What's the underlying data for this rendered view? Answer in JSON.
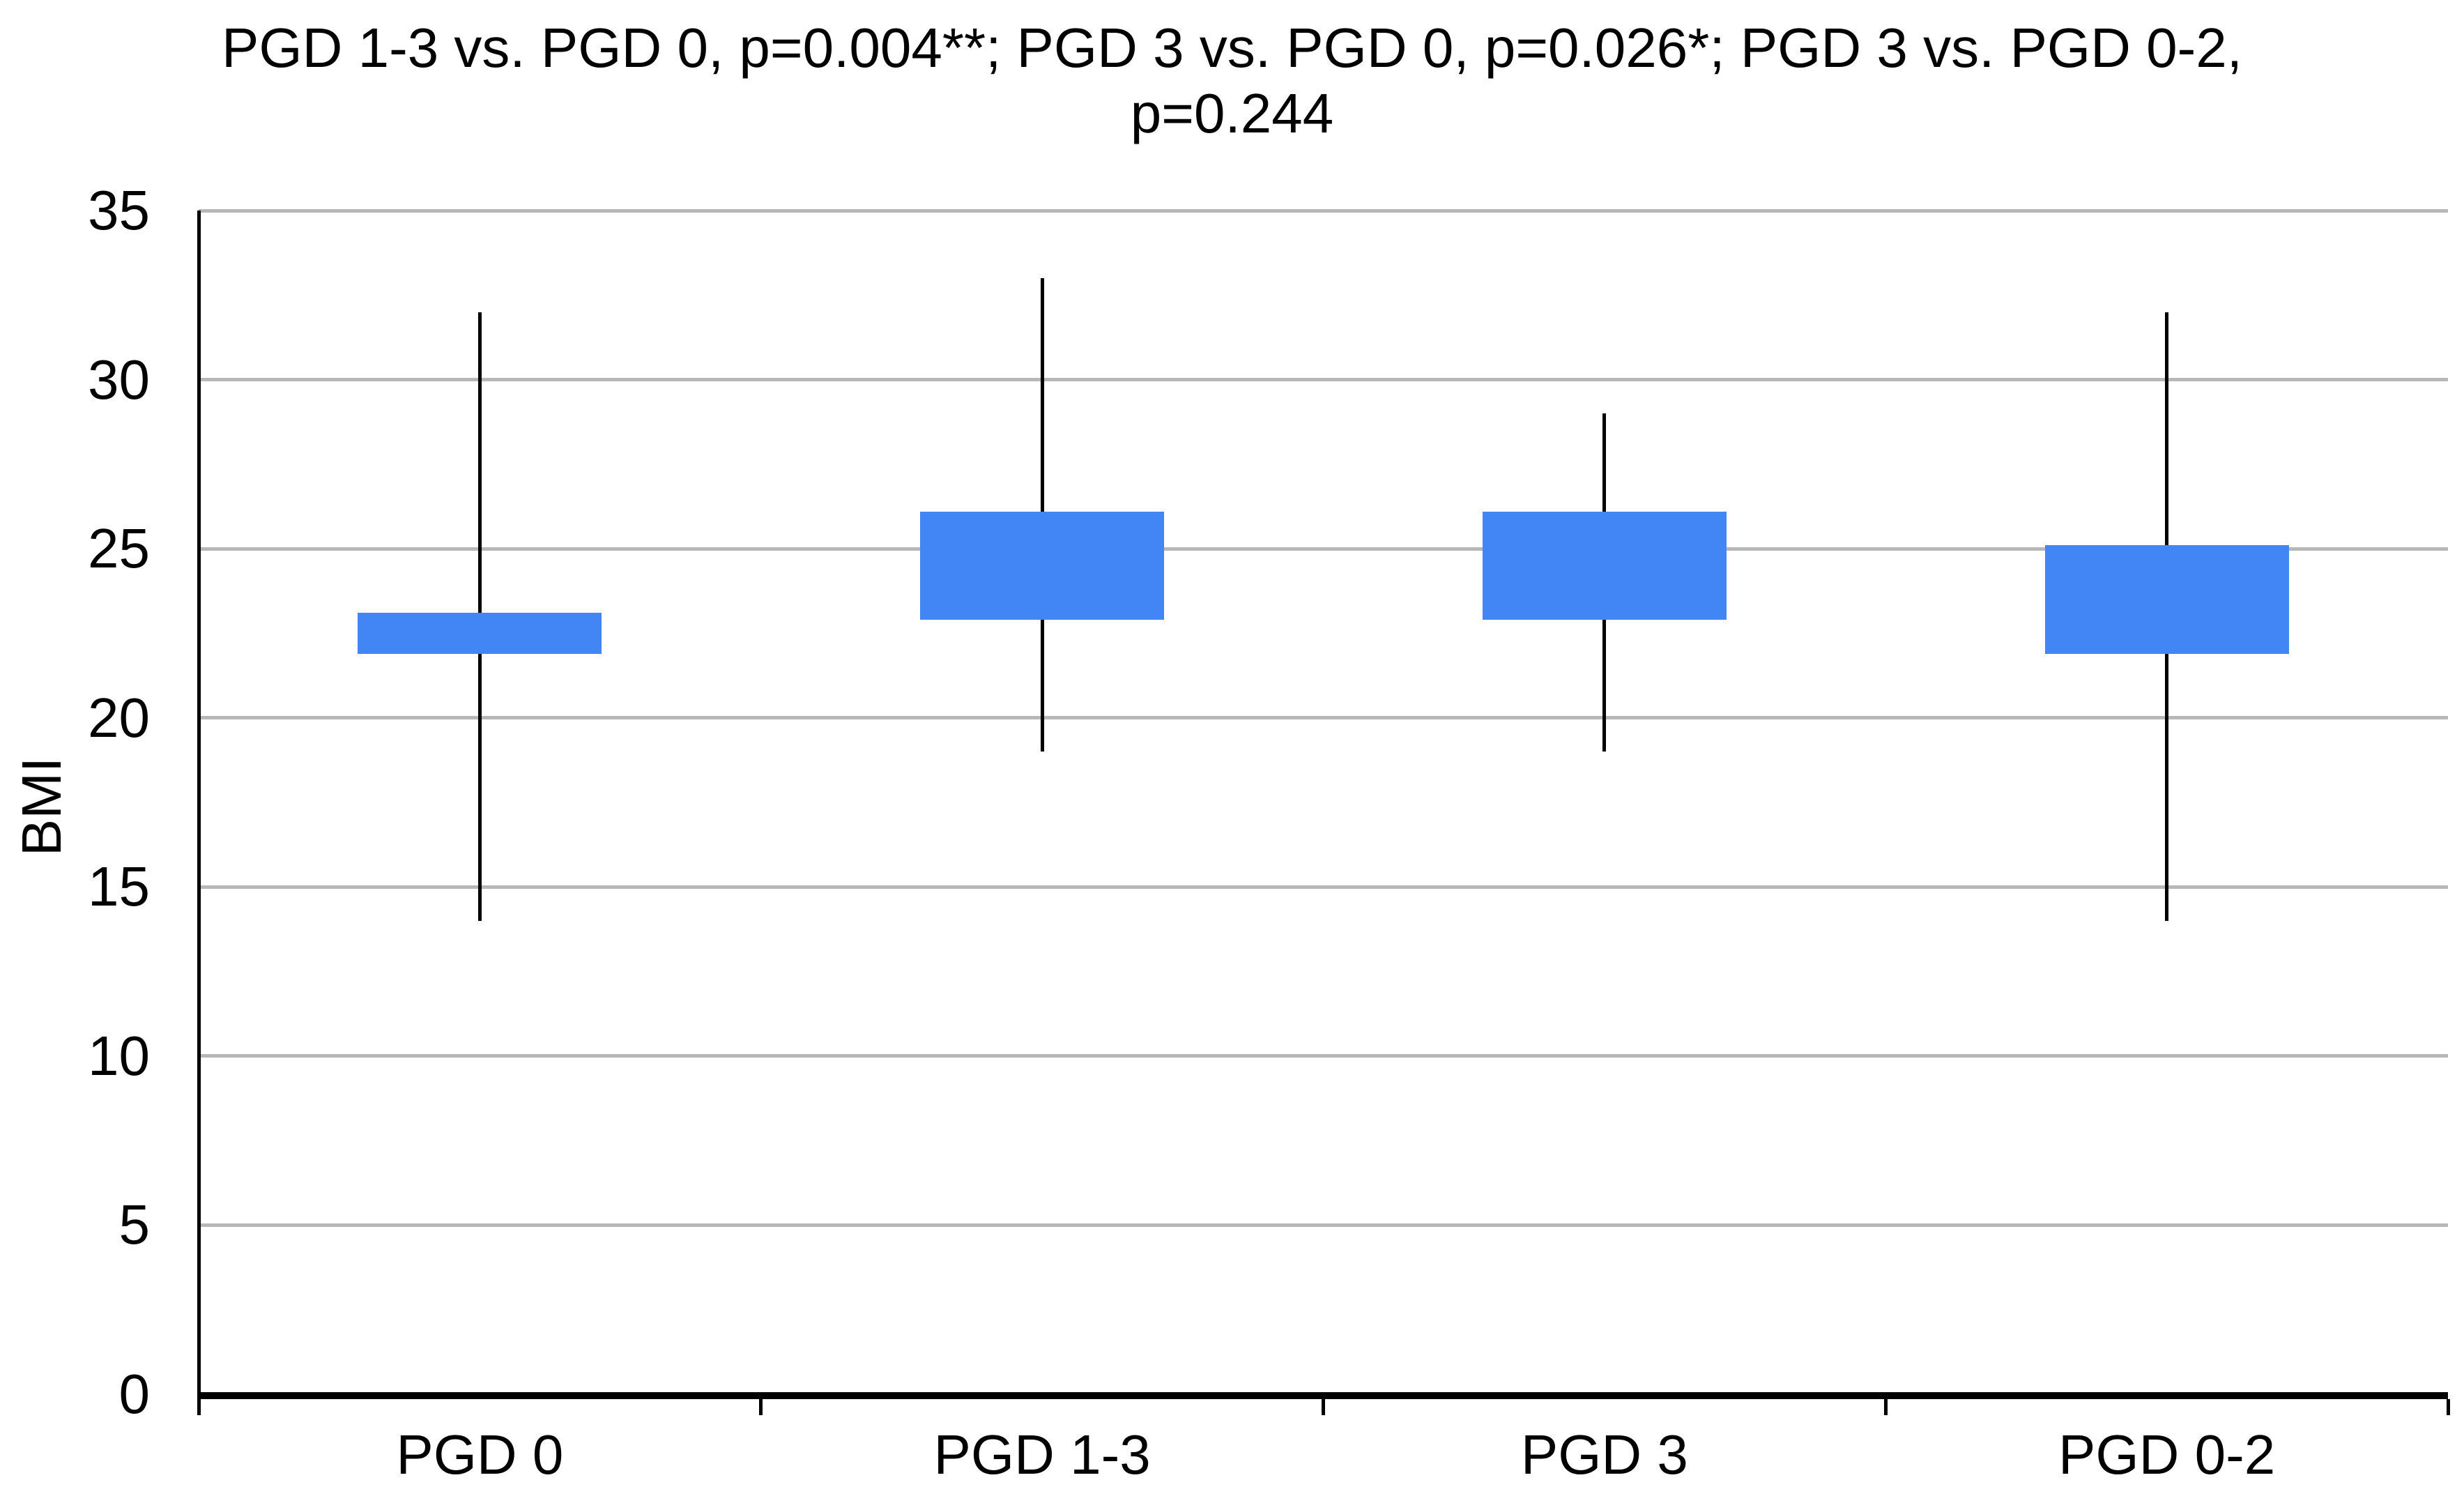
{
  "chart_data": {
    "type": "boxplot",
    "title": "PGD 1-3 vs. PGD 0, p=0.004**; PGD 3 vs. PGD 0, p=0.026*; PGD 3 vs. PGD 0-2, p=0.244",
    "title_lines": [
      "PGD 1-3 vs. PGD 0, p=0.004**; PGD 3 vs. PGD 0, p=0.026*; PGD 3 vs. PGD 0-2,",
      "p=0.244"
    ],
    "xlabel": "",
    "ylabel": "BMI",
    "ylim": [
      0,
      35
    ],
    "yticks": [
      0,
      5,
      10,
      15,
      20,
      25,
      30,
      35
    ],
    "grid": true,
    "legend_position": "none",
    "categories": [
      "PGD 0",
      "PGD 1-3",
      "PGD 3",
      "PGD 0-2"
    ],
    "series": [
      {
        "name": "BMI",
        "boxes": [
          {
            "category": "PGD 0",
            "whisker_low": 14,
            "box_low": 22,
            "box_high": 23,
            "whisker_high": 32
          },
          {
            "category": "PGD 1-3",
            "whisker_low": 19,
            "box_low": 23,
            "box_high": 26,
            "whisker_high": 33
          },
          {
            "category": "PGD 3",
            "whisker_low": 19,
            "box_low": 23,
            "box_high": 26,
            "whisker_high": 29
          },
          {
            "category": "PGD 0-2",
            "whisker_low": 14,
            "box_low": 22,
            "box_high": 25,
            "whisker_high": 32
          }
        ]
      }
    ],
    "colors": {
      "box_fill": "#4285f4",
      "box_border": "rgba(66,133,244,0.48)",
      "whisker": "#000000",
      "gridline": "#b7b7b7",
      "axis": "#000000",
      "text": "#000000"
    }
  }
}
